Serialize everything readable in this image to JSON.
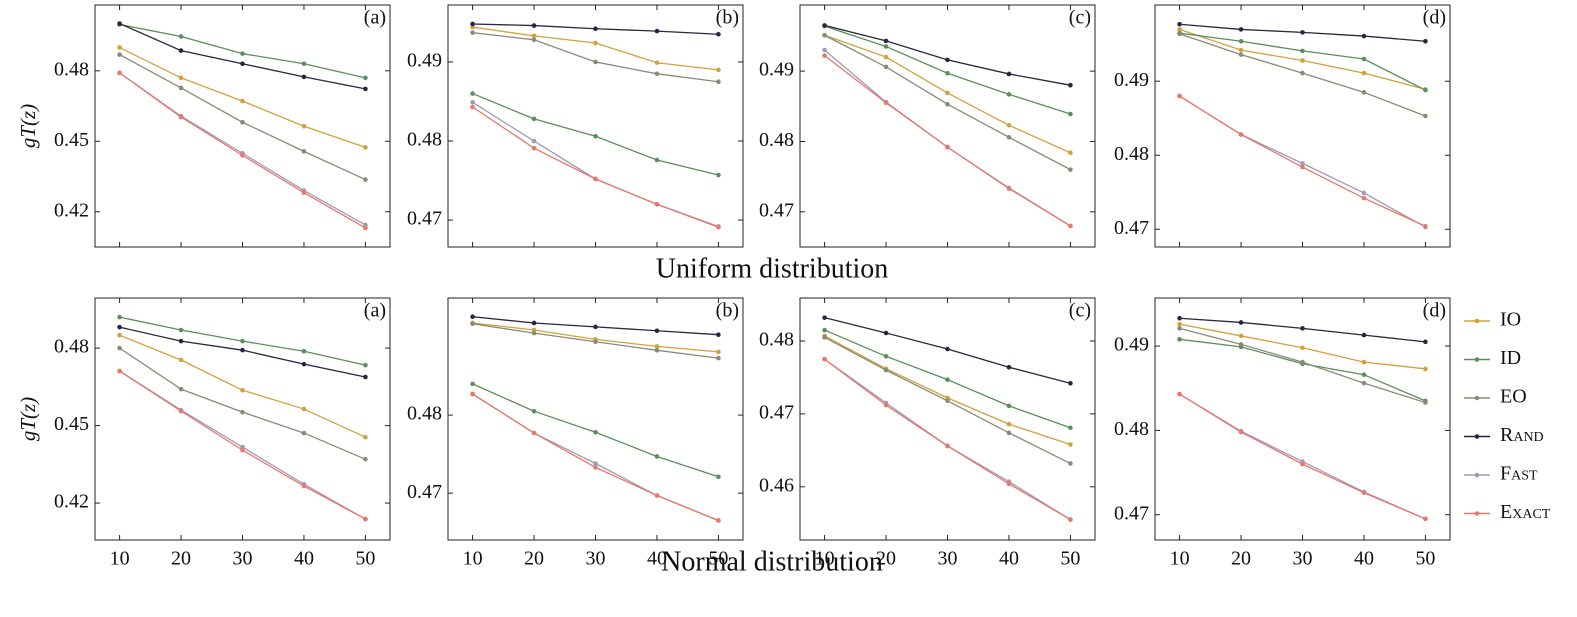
{
  "row_labels": [
    "Uniform distribution",
    "Normal distribution"
  ],
  "chart_data": [
    {
      "type": "line",
      "label": "(a)",
      "ylabel": "gT(z)",
      "x": [
        10,
        20,
        30,
        40,
        50
      ],
      "xlim": [
        6,
        54
      ],
      "xticks": [
        10,
        20,
        30,
        40,
        50
      ],
      "xtick_labels": false,
      "ylim": [
        0.405,
        0.508
      ],
      "yticks": [
        0.42,
        0.45,
        0.48
      ],
      "series": [
        {
          "name": "IO",
          "color": "#d4a03a",
          "values": [
            0.4899,
            0.477,
            0.4671,
            0.4564,
            0.4474
          ]
        },
        {
          "name": "ID",
          "color": "#5a8f5a",
          "values": [
            0.4997,
            0.4946,
            0.4873,
            0.483,
            0.477
          ]
        },
        {
          "name": "EO",
          "color": "#8a8a78",
          "values": [
            0.4869,
            0.4727,
            0.4581,
            0.4457,
            0.4337
          ]
        },
        {
          "name": "Rand",
          "color": "#2a2540",
          "values": [
            0.5001,
            0.4886,
            0.483,
            0.4774,
            0.4723
          ]
        },
        {
          "name": "Fast",
          "color": "#a09ab8",
          "values": [
            0.4791,
            0.4607,
            0.4449,
            0.429,
            0.4144
          ]
        },
        {
          "name": "Exact",
          "color": "#e8786a",
          "values": [
            0.4791,
            0.4603,
            0.444,
            0.4281,
            0.4131
          ]
        }
      ]
    },
    {
      "type": "line",
      "label": "(b)",
      "x": [
        10,
        20,
        30,
        40,
        50
      ],
      "xlim": [
        6,
        54
      ],
      "xticks": [
        10,
        20,
        30,
        40,
        50
      ],
      "xtick_labels": false,
      "ylim": [
        0.4666,
        0.4972
      ],
      "yticks": [
        0.47,
        0.48,
        0.49
      ],
      "series": [
        {
          "name": "IO",
          "color": "#d4a03a",
          "values": [
            0.4944,
            0.4933,
            0.4924,
            0.4899,
            0.489
          ]
        },
        {
          "name": "ID",
          "color": "#5a8f5a",
          "values": [
            0.486,
            0.4828,
            0.4806,
            0.4776,
            0.4757
          ]
        },
        {
          "name": "EO",
          "color": "#8a8a78",
          "values": [
            0.4937,
            0.4928,
            0.49,
            0.4885,
            0.4875
          ]
        },
        {
          "name": "Rand",
          "color": "#2a2540",
          "values": [
            0.4948,
            0.4946,
            0.4942,
            0.4939,
            0.4935
          ]
        },
        {
          "name": "Fast",
          "color": "#a09ab8",
          "values": [
            0.4849,
            0.48,
            0.4752,
            0.472,
            0.4692
          ]
        },
        {
          "name": "Exact",
          "color": "#e8786a",
          "values": [
            0.4843,
            0.4791,
            0.4752,
            0.472,
            0.4691
          ]
        }
      ]
    },
    {
      "type": "line",
      "label": "(c)",
      "x": [
        10,
        20,
        30,
        40,
        50
      ],
      "xlim": [
        6,
        54
      ],
      "xticks": [
        10,
        20,
        30,
        40,
        50
      ],
      "xtick_labels": false,
      "ylim": [
        0.465,
        0.4994
      ],
      "yticks": [
        0.47,
        0.48,
        0.49
      ],
      "series": [
        {
          "name": "IO",
          "color": "#d4a03a",
          "values": [
            0.4951,
            0.492,
            0.4869,
            0.4823,
            0.4784
          ]
        },
        {
          "name": "ID",
          "color": "#5a8f5a",
          "values": [
            0.4964,
            0.4935,
            0.4897,
            0.4867,
            0.4839
          ]
        },
        {
          "name": "EO",
          "color": "#8a8a78",
          "values": [
            0.4951,
            0.4906,
            0.4853,
            0.4806,
            0.476
          ]
        },
        {
          "name": "Rand",
          "color": "#2a2540",
          "values": [
            0.4965,
            0.4943,
            0.4916,
            0.4896,
            0.488
          ]
        },
        {
          "name": "Fast",
          "color": "#a09ab8",
          "values": [
            0.493,
            0.4856,
            0.4792,
            0.4734,
            0.468
          ]
        },
        {
          "name": "Exact",
          "color": "#e8786a",
          "values": [
            0.4922,
            0.4855,
            0.4792,
            0.4733,
            0.468
          ]
        }
      ]
    },
    {
      "type": "line",
      "label": "(d)",
      "x": [
        10,
        20,
        30,
        40,
        50
      ],
      "xlim": [
        6,
        54
      ],
      "xticks": [
        10,
        20,
        30,
        40,
        50
      ],
      "xtick_labels": false,
      "ylim": [
        0.4676,
        0.5003
      ],
      "yticks": [
        0.47,
        0.48,
        0.49
      ],
      "series": [
        {
          "name": "IO",
          "color": "#d4a03a",
          "values": [
            0.497,
            0.4942,
            0.4928,
            0.4911,
            0.4889
          ]
        },
        {
          "name": "ID",
          "color": "#5a8f5a",
          "values": [
            0.4965,
            0.4954,
            0.4941,
            0.493,
            0.4888
          ]
        },
        {
          "name": "EO",
          "color": "#8a8a78",
          "values": [
            0.4964,
            0.4936,
            0.4911,
            0.4885,
            0.4853
          ]
        },
        {
          "name": "Rand",
          "color": "#2a2540",
          "values": [
            0.4977,
            0.497,
            0.4966,
            0.4961,
            0.4954
          ]
        },
        {
          "name": "Fast",
          "color": "#a09ab8",
          "values": [
            0.488,
            0.4828,
            0.4789,
            0.4749,
            0.4703
          ]
        },
        {
          "name": "Exact",
          "color": "#e8786a",
          "values": [
            0.488,
            0.4828,
            0.4784,
            0.4742,
            0.4704
          ]
        }
      ]
    },
    {
      "type": "line",
      "label": "(a)",
      "ylabel": "gT(z)",
      "x": [
        10,
        20,
        30,
        40,
        50
      ],
      "xlim": [
        6,
        54
      ],
      "xticks": [
        10,
        20,
        30,
        40,
        50
      ],
      "xtick_labels": true,
      "ylim": [
        0.4057,
        0.4994
      ],
      "yticks": [
        0.42,
        0.45,
        0.48
      ],
      "series": [
        {
          "name": "IO",
          "color": "#d4a03a",
          "values": [
            0.485,
            0.4754,
            0.4637,
            0.4564,
            0.4455
          ]
        },
        {
          "name": "ID",
          "color": "#5a8f5a",
          "values": [
            0.492,
            0.487,
            0.4827,
            0.4788,
            0.4734
          ]
        },
        {
          "name": "EO",
          "color": "#8a8a78",
          "values": [
            0.48,
            0.4641,
            0.4552,
            0.4471,
            0.437
          ]
        },
        {
          "name": "Rand",
          "color": "#2a2540",
          "values": [
            0.4881,
            0.4827,
            0.4792,
            0.4738,
            0.4688
          ]
        },
        {
          "name": "Fast",
          "color": "#a09ab8",
          "values": [
            0.4711,
            0.456,
            0.4417,
            0.4273,
            0.4138
          ]
        },
        {
          "name": "Exact",
          "color": "#e8786a",
          "values": [
            0.4711,
            0.4556,
            0.4405,
            0.4266,
            0.4138
          ]
        }
      ]
    },
    {
      "type": "line",
      "label": "(b)",
      "x": [
        10,
        20,
        30,
        40,
        50
      ],
      "xlim": [
        6,
        54
      ],
      "xticks": [
        10,
        20,
        30,
        40,
        50
      ],
      "xtick_labels": true,
      "ylim": [
        0.464,
        0.495
      ],
      "yticks": [
        0.47,
        0.48
      ],
      "series": [
        {
          "name": "IO",
          "color": "#d4a03a",
          "values": [
            0.4918,
            0.4909,
            0.4897,
            0.4888,
            0.4881
          ]
        },
        {
          "name": "ID",
          "color": "#5a8f5a",
          "values": [
            0.484,
            0.4805,
            0.4778,
            0.4747,
            0.4721
          ]
        },
        {
          "name": "EO",
          "color": "#8a8a78",
          "values": [
            0.4917,
            0.4905,
            0.4894,
            0.4883,
            0.4873
          ]
        },
        {
          "name": "Rand",
          "color": "#2a2540",
          "values": [
            0.4926,
            0.4918,
            0.4913,
            0.4908,
            0.4903
          ]
        },
        {
          "name": "Fast",
          "color": "#a09ab8",
          "values": [
            0.4827,
            0.4777,
            0.4738,
            0.4697,
            0.4665
          ]
        },
        {
          "name": "Exact",
          "color": "#e8786a",
          "values": [
            0.4827,
            0.4777,
            0.4733,
            0.4697,
            0.4665
          ]
        }
      ]
    },
    {
      "type": "line",
      "label": "(c)",
      "x": [
        10,
        20,
        30,
        40,
        50
      ],
      "xlim": [
        6,
        54
      ],
      "xticks": [
        10,
        20,
        30,
        40,
        50
      ],
      "xtick_labels": true,
      "ylim": [
        0.4527,
        0.4859
      ],
      "yticks": [
        0.46,
        0.47,
        0.48
      ],
      "series": [
        {
          "name": "IO",
          "color": "#d4a03a",
          "values": [
            0.4807,
            0.4762,
            0.4722,
            0.4686,
            0.4658
          ]
        },
        {
          "name": "ID",
          "color": "#5a8f5a",
          "values": [
            0.4815,
            0.4779,
            0.4747,
            0.4711,
            0.4681
          ]
        },
        {
          "name": "EO",
          "color": "#8a8a78",
          "values": [
            0.4805,
            0.476,
            0.4718,
            0.4674,
            0.4632
          ]
        },
        {
          "name": "Rand",
          "color": "#2a2540",
          "values": [
            0.4832,
            0.4811,
            0.4789,
            0.4764,
            0.4742
          ]
        },
        {
          "name": "Fast",
          "color": "#a09ab8",
          "values": [
            0.4775,
            0.4715,
            0.4656,
            0.4607,
            0.4555
          ]
        },
        {
          "name": "Exact",
          "color": "#e8786a",
          "values": [
            0.4775,
            0.4712,
            0.4656,
            0.4604,
            0.4555
          ]
        }
      ]
    },
    {
      "type": "line",
      "label": "(d)",
      "x": [
        10,
        20,
        30,
        40,
        50
      ],
      "xlim": [
        6,
        54
      ],
      "xticks": [
        10,
        20,
        30,
        40,
        50
      ],
      "xtick_labels": true,
      "ylim": [
        0.467,
        0.4957
      ],
      "yticks": [
        0.47,
        0.48,
        0.49
      ],
      "legend": "right",
      "series": [
        {
          "name": "IO",
          "color": "#d4a03a",
          "values": [
            0.4926,
            0.4912,
            0.4898,
            0.4881,
            0.4873
          ]
        },
        {
          "name": "ID",
          "color": "#5a8f5a",
          "values": [
            0.4908,
            0.4899,
            0.4879,
            0.4866,
            0.4835
          ]
        },
        {
          "name": "EO",
          "color": "#8a8a78",
          "values": [
            0.4921,
            0.4902,
            0.4881,
            0.4856,
            0.4833
          ]
        },
        {
          "name": "Rand",
          "color": "#2a2540",
          "values": [
            0.4933,
            0.4928,
            0.4921,
            0.4913,
            0.4905
          ]
        },
        {
          "name": "Fast",
          "color": "#a09ab8",
          "values": [
            0.4843,
            0.4799,
            0.4763,
            0.4727,
            0.4695
          ]
        },
        {
          "name": "Exact",
          "color": "#e8786a",
          "values": [
            0.4843,
            0.4798,
            0.476,
            0.4726,
            0.4695
          ]
        }
      ]
    }
  ]
}
